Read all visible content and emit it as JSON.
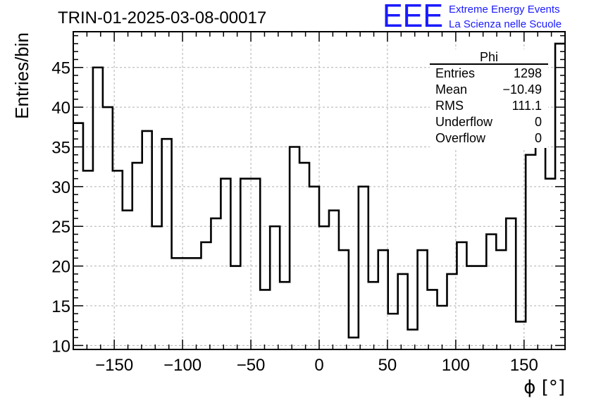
{
  "header": {
    "title": "TRIN-01-2025-03-08-00017",
    "logo_text": "EEE",
    "project_line1": "Extreme Energy Events",
    "project_line2": "La Scienza nelle Scuole",
    "brand_color": "#1a1aff"
  },
  "stats_box": {
    "title": "Phi",
    "rows": [
      {
        "label": "Entries",
        "value": "1298"
      },
      {
        "label": "Mean",
        "value": "−10.49"
      },
      {
        "label": "RMS",
        "value": "111.1"
      },
      {
        "label": "Underflow",
        "value": "0"
      },
      {
        "label": "Overflow",
        "value": "0"
      }
    ]
  },
  "chart_data": {
    "type": "bar",
    "style": "step-histogram",
    "title": "TRIN-01-2025-03-08-00017",
    "xlabel": "ϕ [°]",
    "ylabel": "Entries/bin",
    "xlim": [
      -180,
      180
    ],
    "ylim": [
      9.5,
      49.5
    ],
    "bin_width": 7.2,
    "grid": true,
    "x_ticks": [
      -150,
      -100,
      -50,
      0,
      50,
      100,
      150
    ],
    "x_tick_labels": [
      "−150",
      "−100",
      "−50",
      "0",
      "50",
      "100",
      "150"
    ],
    "y_ticks": [
      10,
      15,
      20,
      25,
      30,
      35,
      40,
      45
    ],
    "y_tick_labels": [
      "10",
      "15",
      "20",
      "25",
      "30",
      "35",
      "40",
      "45"
    ],
    "values": [
      38,
      32,
      45,
      40,
      32,
      27,
      33,
      37,
      25,
      36,
      21,
      21,
      21,
      23,
      26,
      31,
      20,
      31,
      31,
      17,
      25,
      18,
      35,
      33,
      30,
      25,
      27,
      22,
      11,
      30,
      18,
      22,
      14,
      19,
      12,
      22,
      17,
      15,
      19,
      23,
      20,
      20,
      24,
      22,
      26,
      13,
      34,
      36,
      31,
      48
    ]
  }
}
